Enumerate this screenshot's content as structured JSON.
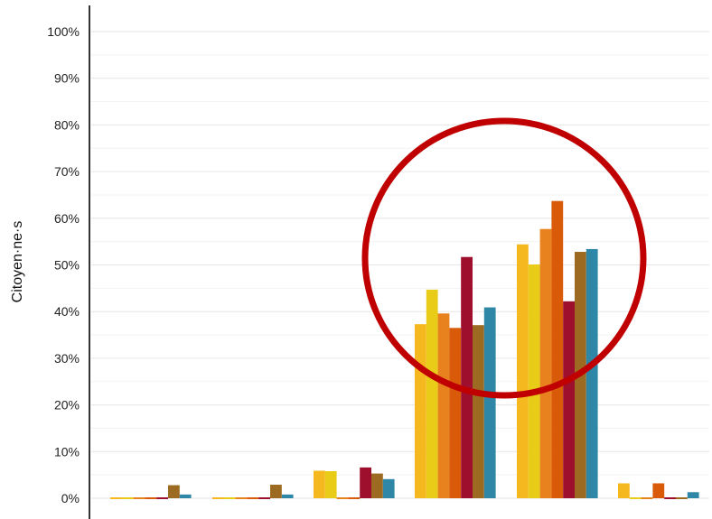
{
  "chart_data": {
    "type": "bar",
    "title": "",
    "xlabel": "",
    "ylabel": "Citoyen·ne·s",
    "ylim": [
      0,
      100
    ],
    "y_ticks": [
      0,
      10,
      20,
      30,
      40,
      50,
      60,
      70,
      80,
      90,
      100
    ],
    "y_tick_labels": [
      "0%",
      "10%",
      "20%",
      "30%",
      "40%",
      "50%",
      "60%",
      "70%",
      "80%",
      "90%",
      "100%"
    ],
    "grid": true,
    "legend": false,
    "categories": [
      "",
      "",
      "",
      "",
      "",
      ""
    ],
    "series": [
      {
        "color": "#F5B81F",
        "values": [
          0,
          0,
          5.9,
          37.3,
          54.4,
          3.2
        ]
      },
      {
        "color": "#E8CC17",
        "values": [
          0,
          0,
          5.8,
          44.7,
          50.1,
          0.2
        ]
      },
      {
        "color": "#E8821E",
        "values": [
          0,
          0,
          0,
          39.6,
          57.7,
          0
        ]
      },
      {
        "color": "#D95A08",
        "values": [
          0,
          0,
          0,
          36.5,
          63.7,
          3.2
        ]
      },
      {
        "color": "#9E0F2E",
        "values": [
          0,
          0,
          6.6,
          51.7,
          42.2,
          0.2
        ]
      },
      {
        "color": "#9C6B21",
        "values": [
          2.8,
          2.9,
          5.3,
          37.1,
          52.8,
          0.2
        ]
      },
      {
        "color": "#2E87A6",
        "values": [
          0.8,
          0.8,
          4.1,
          40.9,
          53.4,
          1.3
        ]
      }
    ],
    "annotation": {
      "type": "circle",
      "color": "#C00000"
    }
  }
}
